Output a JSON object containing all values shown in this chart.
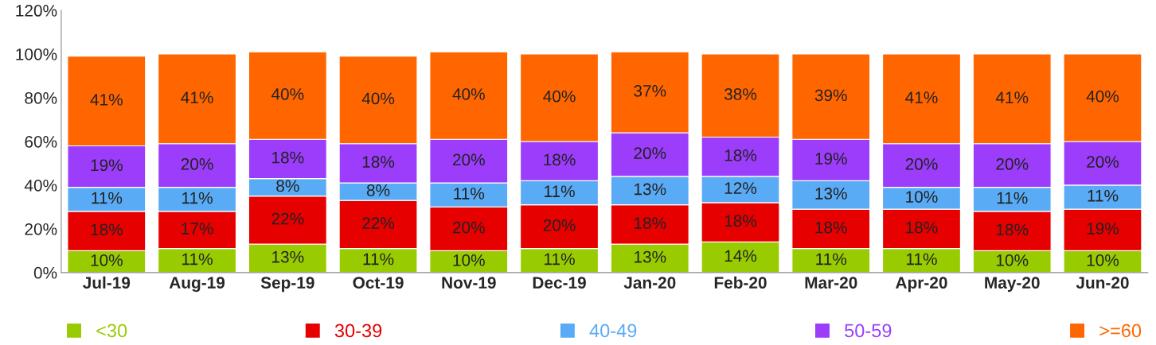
{
  "chart_data": {
    "type": "bar",
    "stacked": true,
    "categories": [
      "Jul-19",
      "Aug-19",
      "Sep-19",
      "Oct-19",
      "Nov-19",
      "Dec-19",
      "Jan-20",
      "Feb-20",
      "Mar-20",
      "Apr-20",
      "May-20",
      "Jun-20"
    ],
    "series": [
      {
        "name": "<30",
        "color": "#99cc00",
        "values": [
          10,
          11,
          13,
          11,
          10,
          11,
          13,
          14,
          11,
          11,
          10,
          10
        ],
        "value_labels": [
          "10%",
          "11%",
          "13%",
          "11%",
          "10%",
          "11%",
          "13%",
          "14%",
          "11%",
          "11%",
          "10%",
          "10%"
        ]
      },
      {
        "name": "30-39",
        "color": "#e60000",
        "values": [
          18,
          17,
          22,
          22,
          20,
          20,
          18,
          18,
          18,
          18,
          18,
          19
        ],
        "value_labels": [
          "18%",
          "17%",
          "22%",
          "22%",
          "20%",
          "20%",
          "18%",
          "18%",
          "18%",
          "18%",
          "18%",
          "19%"
        ]
      },
      {
        "name": "40-49",
        "color": "#5aabf5",
        "values": [
          11,
          11,
          8,
          8,
          11,
          11,
          13,
          12,
          13,
          10,
          11,
          11
        ],
        "value_labels": [
          "11%",
          "11%",
          "8%",
          "8%",
          "11%",
          "11%",
          "13%",
          "12%",
          "13%",
          "10%",
          "11%",
          "11%"
        ]
      },
      {
        "name": "50-59",
        "color": "#9b3dfa",
        "values": [
          19,
          20,
          18,
          18,
          20,
          18,
          20,
          18,
          19,
          20,
          20,
          20
        ],
        "value_labels": [
          "19%",
          "20%",
          "18%",
          "18%",
          "20%",
          "18%",
          "20%",
          "18%",
          "19%",
          "20%",
          "20%",
          "20%"
        ]
      },
      {
        "name": ">=60",
        "color": "#ff6600",
        "values": [
          41,
          41,
          40,
          40,
          40,
          40,
          37,
          38,
          39,
          41,
          41,
          40
        ],
        "value_labels": [
          "41%",
          "41%",
          "40%",
          "40%",
          "40%",
          "40%",
          "37%",
          "38%",
          "39%",
          "41%",
          "41%",
          "40%"
        ]
      }
    ],
    "ylim": [
      0,
      120
    ],
    "yticks": [
      {
        "value": 0,
        "label": "0%"
      },
      {
        "value": 20,
        "label": "20%"
      },
      {
        "value": 40,
        "label": "40%"
      },
      {
        "value": 60,
        "label": "60%"
      },
      {
        "value": 80,
        "label": "80%"
      },
      {
        "value": 100,
        "label": "100%"
      },
      {
        "value": 120,
        "label": "120%"
      }
    ],
    "grid": false,
    "legend": "bottom"
  }
}
